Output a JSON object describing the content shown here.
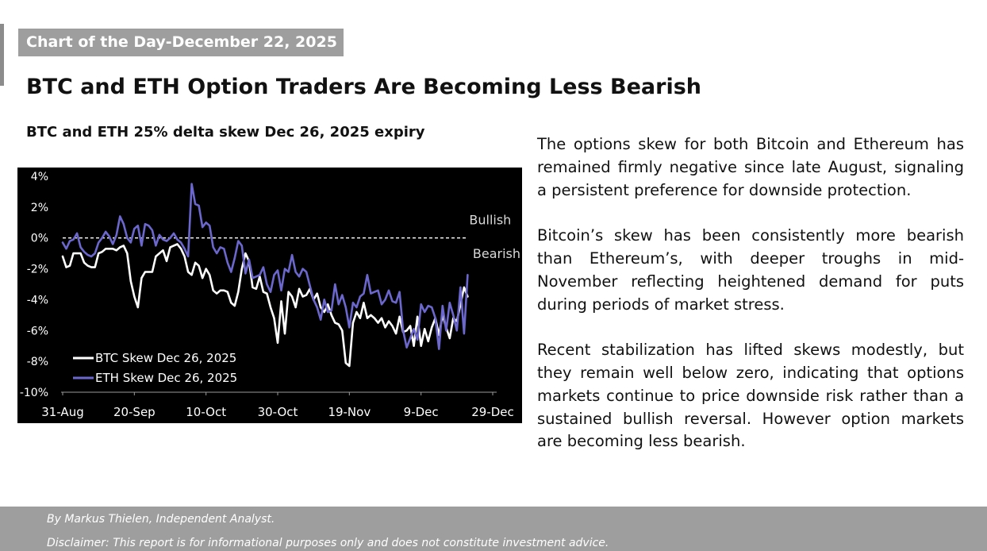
{
  "header": {
    "tag": "Chart of the Day-December 22, 2025",
    "headline": "BTC and ETH Option Traders Are Becoming Less Bearish"
  },
  "chart_data": {
    "type": "line",
    "title": "BTC and ETH 25% delta skew Dec 26, 2025 expiry",
    "xlabel": "",
    "ylabel": "",
    "background": "#000000",
    "x_range": [
      0,
      120
    ],
    "x_ticks": [
      {
        "label": "31-Aug",
        "x": 0
      },
      {
        "label": "20-Sep",
        "x": 20
      },
      {
        "label": "10-Oct",
        "x": 40
      },
      {
        "label": "30-Oct",
        "x": 60
      },
      {
        "label": "19-Nov",
        "x": 80
      },
      {
        "label": "9-Dec",
        "x": 100
      },
      {
        "label": "29-Dec",
        "x": 120
      }
    ],
    "ylim": [
      -10,
      4
    ],
    "y_ticks": [
      4,
      2,
      0,
      -2,
      -4,
      -6,
      -8,
      -10
    ],
    "y_tick_labels": [
      "4%",
      "2%",
      "0%",
      "-2%",
      "-4%",
      "-6%",
      "-8%",
      "-10%"
    ],
    "zero_line": {
      "value": 0,
      "style": "dashed",
      "x_end": 113
    },
    "annotations": [
      {
        "text": "Bullish",
        "x": 113,
        "y": 1.2
      },
      {
        "text": "Bearish",
        "x": 114,
        "y": -1.0
      }
    ],
    "legend": [
      {
        "label": "BTC Skew Dec 26, 2025",
        "color": "#ffffff"
      },
      {
        "label": "ETH Skew Dec 26, 2025",
        "color": "#6b67cc"
      }
    ],
    "series": [
      {
        "name": "BTC Skew Dec 26, 2025",
        "color": "#ffffff",
        "x": [
          0,
          1,
          2,
          3,
          4,
          5,
          6,
          7,
          8,
          9,
          10,
          11,
          12,
          13,
          14,
          15,
          16,
          17,
          18,
          19,
          20,
          21,
          22,
          23,
          24,
          25,
          26,
          27,
          28,
          29,
          30,
          31,
          32,
          33,
          34,
          35,
          36,
          37,
          38,
          39,
          40,
          41,
          42,
          43,
          44,
          45,
          46,
          47,
          48,
          49,
          50,
          51,
          52,
          53,
          54,
          55,
          56,
          57,
          58,
          59,
          60,
          61,
          62,
          63,
          64,
          65,
          66,
          67,
          68,
          69,
          70,
          71,
          72,
          73,
          74,
          75,
          76,
          77,
          78,
          79,
          80,
          81,
          82,
          83,
          84,
          85,
          86,
          87,
          88,
          89,
          90,
          91,
          92,
          93,
          94,
          95,
          96,
          97,
          98,
          99,
          100,
          101,
          102,
          103,
          104,
          105,
          106,
          107,
          108,
          109,
          110,
          111,
          112,
          113
        ],
        "values": [
          -1.2,
          -1.9,
          -1.8,
          -1.0,
          -1.0,
          -1.0,
          -1.6,
          -1.8,
          -1.9,
          -1.9,
          -1.0,
          -0.9,
          -0.7,
          -0.7,
          -0.7,
          -0.8,
          -0.6,
          -0.5,
          -1.0,
          -2.8,
          -3.8,
          -4.5,
          -2.6,
          -2.2,
          -2.2,
          -2.2,
          -1.2,
          -1.0,
          -0.8,
          -1.5,
          -0.6,
          -0.5,
          -0.4,
          -0.7,
          -1.2,
          -2.2,
          -2.4,
          -1.6,
          -1.8,
          -2.6,
          -2.0,
          -2.4,
          -3.4,
          -3.6,
          -3.4,
          -3.4,
          -3.5,
          -4.2,
          -4.4,
          -3.5,
          -2.0,
          -1.0,
          -1.5,
          -3.2,
          -3.3,
          -2.5,
          -3.5,
          -3.6,
          -4.5,
          -5.2,
          -6.8,
          -4.1,
          -6.2,
          -3.5,
          -3.8,
          -4.5,
          -3.3,
          -3.8,
          -3.7,
          -3.3,
          -4.0,
          -3.6,
          -4.5,
          -4.8,
          -4.3,
          -5.0,
          -5.5,
          -5.6,
          -6.0,
          -8.1,
          -8.3,
          -5.5,
          -4.8,
          -5.2,
          -4.2,
          -5.2,
          -5.0,
          -5.2,
          -5.5,
          -5.2,
          -5.8,
          -5.4,
          -5.7,
          -6.2,
          -5.1,
          -6.1,
          -6.0,
          -5.7,
          -7.0,
          -5.1,
          -7.0,
          -5.9,
          -6.7,
          -5.8,
          -5.2,
          -6.3,
          -5.0,
          -5.8,
          -6.5,
          -5.2,
          -5.4,
          -4.3,
          -3.2,
          -3.8
        ]
      },
      {
        "name": "ETH Skew Dec 26, 2025",
        "color": "#6b67cc",
        "x": [
          0,
          1,
          2,
          3,
          4,
          5,
          6,
          7,
          8,
          9,
          10,
          11,
          12,
          13,
          14,
          15,
          16,
          17,
          18,
          19,
          20,
          21,
          22,
          23,
          24,
          25,
          26,
          27,
          28,
          29,
          30,
          31,
          32,
          33,
          34,
          35,
          36,
          37,
          38,
          39,
          40,
          41,
          42,
          43,
          44,
          45,
          46,
          47,
          48,
          49,
          50,
          51,
          52,
          53,
          54,
          55,
          56,
          57,
          58,
          59,
          60,
          61,
          62,
          63,
          64,
          65,
          66,
          67,
          68,
          69,
          70,
          71,
          72,
          73,
          74,
          75,
          76,
          77,
          78,
          79,
          80,
          81,
          82,
          83,
          84,
          85,
          86,
          87,
          88,
          89,
          90,
          91,
          92,
          93,
          94,
          95,
          96,
          97,
          98,
          99,
          100,
          101,
          102,
          103,
          104,
          105,
          106,
          107,
          108,
          109,
          110,
          111,
          112,
          113
        ],
        "values": [
          -0.3,
          -0.7,
          -0.2,
          -0.1,
          0.3,
          -0.6,
          -0.9,
          -1.1,
          -1.2,
          -1.0,
          -0.3,
          0.0,
          0.4,
          0.1,
          -0.4,
          0.2,
          1.4,
          0.9,
          0.0,
          -0.3,
          0.6,
          0.8,
          -0.5,
          0.9,
          0.8,
          0.5,
          -0.5,
          0.2,
          -0.1,
          -0.2,
          0.0,
          0.3,
          -0.1,
          -0.3,
          -0.7,
          -1.2,
          3.5,
          2.2,
          2.1,
          0.7,
          1.0,
          0.8,
          -0.6,
          -1.0,
          -0.6,
          -0.7,
          -1.6,
          -2.2,
          -1.3,
          -0.2,
          -0.5,
          -2.3,
          -1.4,
          -2.6,
          -2.5,
          -2.4,
          -1.9,
          -3.0,
          -3.5,
          -2.4,
          -2.1,
          -3.4,
          -2.0,
          -2.2,
          -1.1,
          -2.2,
          -2.5,
          -2.0,
          -2.2,
          -3.1,
          -4.0,
          -4.5,
          -5.3,
          -4.0,
          -4.8,
          -4.7,
          -3.0,
          -4.3,
          -3.7,
          -4.5,
          -5.8,
          -4.2,
          -4.5,
          -3.8,
          -3.6,
          -2.4,
          -3.6,
          -3.5,
          -3.4,
          -4.3,
          -4.0,
          -3.4,
          -4.1,
          -4.2,
          -3.5,
          -6.0,
          -7.1,
          -6.5,
          -5.9,
          -6.6,
          -4.3,
          -4.8,
          -4.4,
          -4.5,
          -5.2,
          -7.2,
          -4.4,
          -6.0,
          -4.2,
          -5.0,
          -6.0,
          -3.2,
          -6.2,
          -2.4
        ]
      }
    ]
  },
  "body": {
    "paragraphs": [
      "The options skew for both Bitcoin and Ethereum has remained firmly negative since late August, signaling a persistent preference for downside protection.",
      "Bitcoin’s skew has been consistently more bearish than Ethereum’s, with deeper troughs in mid-November reflecting heightened demand for puts during periods of market stress.",
      "Recent stabilization has lifted skews modestly, but they remain well below zero, indicating that options markets continue to price downside risk rather than a sustained bullish reversal. However option markets are becoming less bearish."
    ]
  },
  "footer": {
    "author": "By Markus Thielen, Independent Analyst.",
    "disclaimer": "Disclaimer: This report is for informational purposes only and does not constitute investment advice."
  }
}
